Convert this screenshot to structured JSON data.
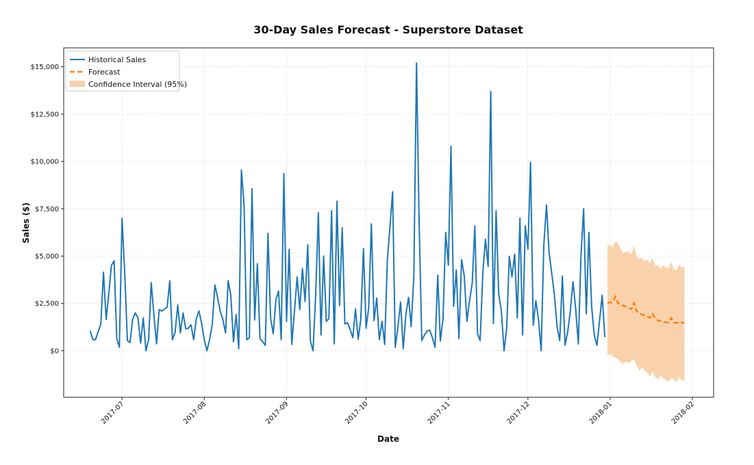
{
  "chart_data": {
    "type": "line",
    "title": "30-Day Sales Forecast - Superstore Dataset",
    "xlabel": "Date",
    "ylabel": "Sales ($)",
    "ylim": [
      -2460,
      16000
    ],
    "xlim": [
      "2017-06-09",
      "2018-02-09"
    ],
    "yticks": [
      0,
      2500,
      5000,
      7500,
      10000,
      12500,
      15000
    ],
    "ytick_labels": [
      "$0",
      "$2,500",
      "$5,000",
      "$7,500",
      "$10,000",
      "$12,500",
      "$15,000"
    ],
    "xticks": [
      "2017-07-01",
      "2017-08-01",
      "2017-09-01",
      "2017-10-01",
      "2017-11-01",
      "2017-12-01",
      "2018-01-01",
      "2018-02-01"
    ],
    "xtick_labels": [
      "2017-07",
      "2017-08",
      "2017-09",
      "2017-10",
      "2017-11",
      "2017-12",
      "2018-01",
      "2018-02"
    ],
    "grid": true,
    "legend_position": "top-left",
    "colors": {
      "historical": "#1f77b4",
      "forecast": "#ff7f0e",
      "confidence": "#f9d0a8"
    },
    "series": [
      {
        "name": "Historical Sales",
        "style": "solid",
        "x": [
          "2017-06-19",
          "2017-06-20",
          "2017-06-21",
          "2017-06-22",
          "2017-06-23",
          "2017-06-24",
          "2017-06-25",
          "2017-06-26",
          "2017-06-27",
          "2017-06-28",
          "2017-06-29",
          "2017-06-30",
          "2017-07-01",
          "2017-07-02",
          "2017-07-03",
          "2017-07-04",
          "2017-07-05",
          "2017-07-06",
          "2017-07-07",
          "2017-07-08",
          "2017-07-09",
          "2017-07-10",
          "2017-07-11",
          "2017-07-12",
          "2017-07-13",
          "2017-07-14",
          "2017-07-15",
          "2017-07-16",
          "2017-07-17",
          "2017-07-18",
          "2017-07-19",
          "2017-07-20",
          "2017-07-21",
          "2017-07-22",
          "2017-07-23",
          "2017-07-24",
          "2017-07-25",
          "2017-07-26",
          "2017-07-27",
          "2017-07-28",
          "2017-07-29",
          "2017-07-30",
          "2017-07-31",
          "2017-08-01",
          "2017-08-02",
          "2017-08-03",
          "2017-08-04",
          "2017-08-05",
          "2017-08-06",
          "2017-08-07",
          "2017-08-08",
          "2017-08-09",
          "2017-08-10",
          "2017-08-11",
          "2017-08-12",
          "2017-08-13",
          "2017-08-14",
          "2017-08-15",
          "2017-08-16",
          "2017-08-17",
          "2017-08-18",
          "2017-08-19",
          "2017-08-20",
          "2017-08-21",
          "2017-08-22",
          "2017-08-23",
          "2017-08-24",
          "2017-08-25",
          "2017-08-26",
          "2017-08-27",
          "2017-08-28",
          "2017-08-29",
          "2017-08-30",
          "2017-08-31",
          "2017-09-01",
          "2017-09-02",
          "2017-09-03",
          "2017-09-04",
          "2017-09-05",
          "2017-09-06",
          "2017-09-07",
          "2017-09-08",
          "2017-09-09",
          "2017-09-10",
          "2017-09-11",
          "2017-09-12",
          "2017-09-13",
          "2017-09-14",
          "2017-09-15",
          "2017-09-16",
          "2017-09-17",
          "2017-09-18",
          "2017-09-19",
          "2017-09-20",
          "2017-09-21",
          "2017-09-22",
          "2017-09-23",
          "2017-09-24",
          "2017-09-25",
          "2017-09-26",
          "2017-09-27",
          "2017-09-28",
          "2017-09-29",
          "2017-09-30",
          "2017-10-01",
          "2017-10-02",
          "2017-10-03",
          "2017-10-04",
          "2017-10-05",
          "2017-10-06",
          "2017-10-07",
          "2017-10-08",
          "2017-10-09",
          "2017-10-10",
          "2017-10-11",
          "2017-10-12",
          "2017-10-13",
          "2017-10-14",
          "2017-10-15",
          "2017-10-16",
          "2017-10-17",
          "2017-10-18",
          "2017-10-19",
          "2017-10-20",
          "2017-10-21",
          "2017-10-22",
          "2017-10-23",
          "2017-10-24",
          "2017-10-25",
          "2017-10-26",
          "2017-10-27",
          "2017-10-28",
          "2017-10-29",
          "2017-10-30",
          "2017-10-31",
          "2017-11-01",
          "2017-11-02",
          "2017-11-03",
          "2017-11-04",
          "2017-11-05",
          "2017-11-06",
          "2017-11-07",
          "2017-11-08",
          "2017-11-09",
          "2017-11-10",
          "2017-11-11",
          "2017-11-12",
          "2017-11-13",
          "2017-11-14",
          "2017-11-15",
          "2017-11-16",
          "2017-11-17",
          "2017-11-18",
          "2017-11-19",
          "2017-11-20",
          "2017-11-21",
          "2017-11-22",
          "2017-11-23",
          "2017-11-24",
          "2017-11-25",
          "2017-11-26",
          "2017-11-27",
          "2017-11-28",
          "2017-11-29",
          "2017-11-30",
          "2017-12-01",
          "2017-12-02",
          "2017-12-03",
          "2017-12-04",
          "2017-12-05",
          "2017-12-06",
          "2017-12-07",
          "2017-12-08",
          "2017-12-09",
          "2017-12-10",
          "2017-12-11",
          "2017-12-12",
          "2017-12-13",
          "2017-12-14",
          "2017-12-15",
          "2017-12-16",
          "2017-12-17",
          "2017-12-18",
          "2017-12-19",
          "2017-12-20",
          "2017-12-21",
          "2017-12-22",
          "2017-12-23",
          "2017-12-24",
          "2017-12-25",
          "2017-12-26",
          "2017-12-27",
          "2017-12-28",
          "2017-12-29",
          "2017-12-30"
        ],
        "values": [
          1050,
          580,
          580,
          1010,
          1410,
          4150,
          1650,
          2990,
          4500,
          4750,
          650,
          180,
          7000,
          4120,
          540,
          430,
          1660,
          2000,
          1730,
          400,
          1730,
          0,
          580,
          3600,
          1920,
          360,
          2170,
          2100,
          2200,
          2300,
          3700,
          580,
          980,
          2420,
          940,
          1990,
          1160,
          1190,
          1370,
          580,
          1700,
          2100,
          1450,
          580,
          0,
          580,
          1370,
          3470,
          2820,
          2100,
          1660,
          940,
          3700,
          2930,
          470,
          1920,
          110,
          9540,
          7700,
          580,
          690,
          8560,
          1630,
          4600,
          650,
          470,
          290,
          6200,
          1730,
          900,
          2710,
          3150,
          580,
          9360,
          1550,
          5350,
          330,
          2100,
          3900,
          2170,
          4340,
          2600,
          5600,
          510,
          0,
          3000,
          7300,
          830,
          5000,
          1550,
          1700,
          7400,
          360,
          7900,
          2390,
          6500,
          1410,
          1480,
          1120,
          690,
          2210,
          610,
          1630,
          5400,
          1190,
          2280,
          6700,
          1590,
          2780,
          580,
          1550,
          330,
          4810,
          6540,
          8400,
          180,
          1270,
          2570,
          110,
          1920,
          2820,
          1270,
          3940,
          15200,
          6800,
          540,
          830,
          1050,
          1080,
          690,
          180,
          4000,
          510,
          1700,
          6250,
          4520,
          10800,
          2350,
          4270,
          650,
          4810,
          3970,
          1550,
          2640,
          3540,
          6600,
          900,
          540,
          4090,
          5890,
          4450,
          13700,
          1450,
          7400,
          3000,
          2100,
          0,
          1190,
          4990,
          3900,
          5100,
          1740,
          7000,
          830,
          6600,
          5380,
          9950,
          1340,
          2640,
          1630,
          0,
          5600,
          7700,
          5170,
          4080,
          2930,
          1270,
          540,
          3940,
          290,
          1010,
          2100,
          3650,
          2210,
          360,
          5000,
          7500,
          1950,
          6250,
          2390,
          830,
          290,
          1560,
          2930,
          720
        ]
      },
      {
        "name": "Forecast",
        "style": "dashed",
        "x": [
          "2017-12-31",
          "2018-01-01",
          "2018-01-02",
          "2018-01-03",
          "2018-01-04",
          "2018-01-05",
          "2018-01-06",
          "2018-01-07",
          "2018-01-08",
          "2018-01-09",
          "2018-01-10",
          "2018-01-11",
          "2018-01-12",
          "2018-01-13",
          "2018-01-14",
          "2018-01-15",
          "2018-01-16",
          "2018-01-17",
          "2018-01-18",
          "2018-01-19",
          "2018-01-20",
          "2018-01-21",
          "2018-01-22",
          "2018-01-23",
          "2018-01-24",
          "2018-01-25",
          "2018-01-26",
          "2018-01-27",
          "2018-01-28",
          "2018-01-29"
        ],
        "values": [
          2540,
          2540,
          2560,
          2850,
          2500,
          2440,
          2380,
          2320,
          2260,
          2200,
          2520,
          2080,
          1990,
          1920,
          1860,
          1800,
          1740,
          1950,
          1690,
          1600,
          1560,
          1520,
          1500,
          1480,
          1730,
          1500,
          1470,
          1470,
          1480,
          1490
        ],
        "upper": [
          5530,
          5600,
          5450,
          5800,
          5650,
          5400,
          5150,
          5250,
          5200,
          5100,
          5550,
          5000,
          4850,
          4900,
          4750,
          4800,
          4650,
          4900,
          4500,
          4550,
          4350,
          4500,
          4400,
          4350,
          4700,
          4300,
          4250,
          4550,
          4400,
          4450
        ],
        "lower": [
          -250,
          -150,
          -300,
          -350,
          -450,
          -600,
          -700,
          -600,
          -650,
          -550,
          -450,
          -800,
          -1050,
          -900,
          -1050,
          -1150,
          -1350,
          -1100,
          -1400,
          -1500,
          -1300,
          -1450,
          -1550,
          -1650,
          -1450,
          -1500,
          -1650,
          -1400,
          -1550,
          -1600
        ]
      }
    ],
    "legend": [
      "Historical Sales",
      "Forecast",
      "Confidence Interval (95%)"
    ]
  }
}
